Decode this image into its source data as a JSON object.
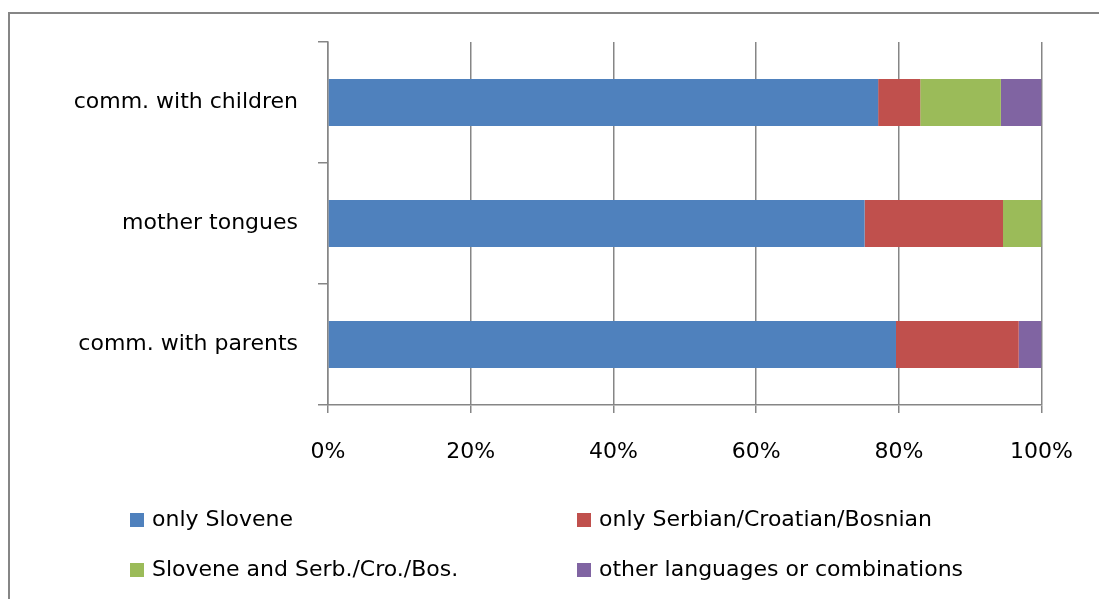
{
  "chart_data": {
    "type": "bar",
    "orientation": "horizontal",
    "stacked": true,
    "categories": [
      "comm. with children",
      "mother tongues",
      "comm. with parents"
    ],
    "series": [
      {
        "name": "only Slovene",
        "color": "#4f81bd",
        "values": [
          77.1,
          75.2,
          79.6
        ]
      },
      {
        "name": "only Serbian/Croatian/Bosnian",
        "color": "#c0504d",
        "values": [
          5.9,
          19.4,
          17.2
        ]
      },
      {
        "name": "Slovene and Serb./Cro./Bos.",
        "color": "#9bbb59",
        "values": [
          11.3,
          5.4,
          0
        ]
      },
      {
        "name": "other languages or combinations",
        "color": "#8064a2",
        "values": [
          5.7,
          0,
          3.2
        ]
      }
    ],
    "xlim": [
      0,
      100
    ],
    "xticks": [
      {
        "value": 0,
        "label": "0%"
      },
      {
        "value": 20,
        "label": "20%"
      },
      {
        "value": 40,
        "label": "40%"
      },
      {
        "value": 60,
        "label": "60%"
      },
      {
        "value": 80,
        "label": "80%"
      },
      {
        "value": 100,
        "label": "100%"
      }
    ],
    "grid": "x",
    "legend": "bottom"
  }
}
